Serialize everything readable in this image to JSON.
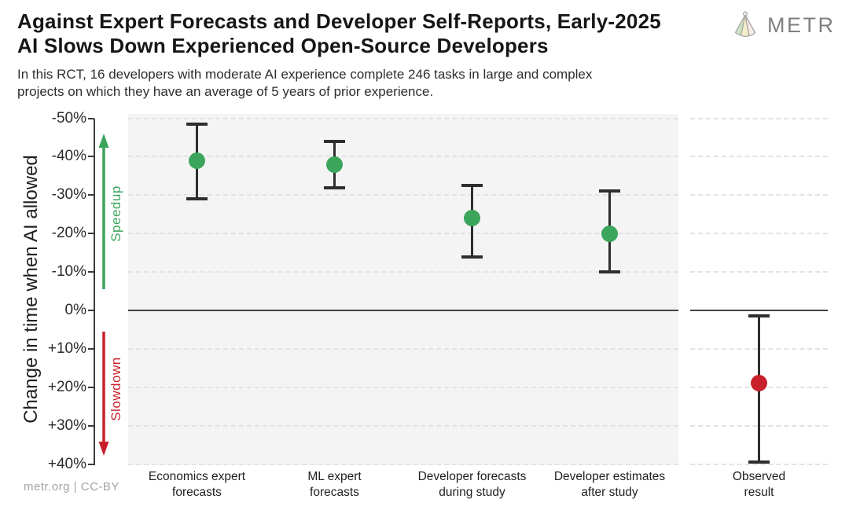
{
  "header": {
    "title_lines": [
      "Against Expert Forecasts and Developer Self-Reports, Early-2025",
      "AI Slows Down Experienced Open-Source Developers"
    ],
    "subtitle_lines": [
      "In this RCT, 16 developers with moderate AI experience complete 246 tasks in large and complex",
      "projects on which they have an average of 5 years of prior experience."
    ],
    "logo_text": "METR"
  },
  "footer": {
    "credit": "metr.org  |  CC-BY"
  },
  "colors": {
    "forecast_green": "#3ba55b",
    "observed_red": "#c8212b",
    "error_bar": "#2e2e2e",
    "panel_bg": "#f4f4f5",
    "gridline": "#e3e3e5",
    "zero_line": "#424242"
  },
  "chart_data": {
    "type": "scatter",
    "subtype": "point-estimates-with-error-bars",
    "title": "Against Expert Forecasts and Developer Self-Reports, Early-2025 AI Slows Down Experienced Open-Source Developers",
    "ylabel": "Change in time when AI allowed",
    "y_axis_inverted": true,
    "ylim_top": -50,
    "ylim_bottom": 40,
    "grid": "dashed horizontal",
    "yticks": [
      "-50%",
      "-40%",
      "-30%",
      "-20%",
      "-10%",
      "0%",
      "+10%",
      "+20%",
      "+30%",
      "+40%"
    ],
    "ytick_values": [
      -50,
      -40,
      -30,
      -20,
      -10,
      0,
      10,
      20,
      30,
      40
    ],
    "annotations": {
      "speedup_label": "Speedup",
      "slowdown_label": "Slowdown"
    },
    "categories": [
      "Economics expert forecasts",
      "ML expert forecasts",
      "Developer forecasts during study",
      "Developer estimates after study",
      "Observed result"
    ],
    "points": [
      {
        "label_lines": [
          "Economics expert",
          "forecasts"
        ],
        "value": -39,
        "ci": [
          -48.5,
          -29
        ],
        "color": "#3ba55b",
        "panel": "main"
      },
      {
        "label_lines": [
          "ML expert",
          "forecasts"
        ],
        "value": -38,
        "ci": [
          -44,
          -32
        ],
        "color": "#3ba55b",
        "panel": "main"
      },
      {
        "label_lines": [
          "Developer forecasts",
          "during study"
        ],
        "value": -24,
        "ci": [
          -32.5,
          -14
        ],
        "color": "#3ba55b",
        "panel": "main"
      },
      {
        "label_lines": [
          "Developer estimates",
          "after study"
        ],
        "value": -20,
        "ci": [
          -31,
          -10
        ],
        "color": "#3ba55b",
        "panel": "main"
      },
      {
        "label_lines": [
          "Observed",
          "result"
        ],
        "value": 19,
        "ci": [
          1.5,
          39.5
        ],
        "color": "#c8212b",
        "panel": "right"
      }
    ]
  }
}
